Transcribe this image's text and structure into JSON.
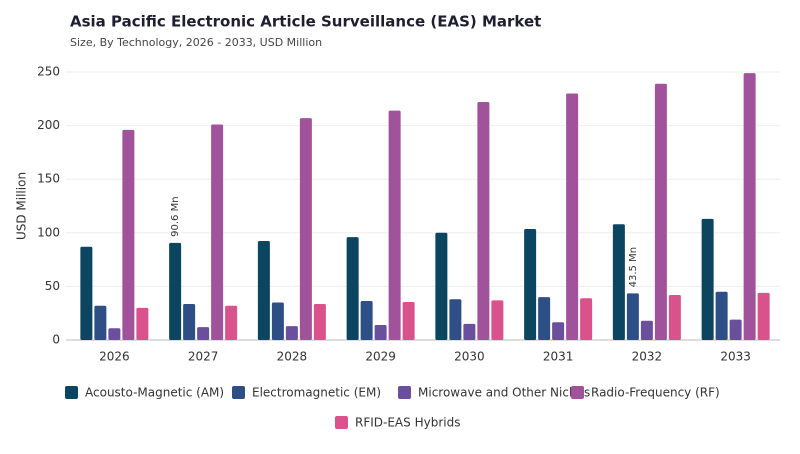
{
  "chart_data": {
    "type": "bar",
    "title": "Asia Pacific Electronic Article Surveillance (EAS) Market",
    "subtitle": "Size, By Technology, 2026 - 2033, USD Million",
    "y_label": "USD Million",
    "categories": [
      "2026",
      "2027",
      "2028",
      "2029",
      "2030",
      "2031",
      "2032",
      "2033"
    ],
    "series": [
      {
        "name": "Acousto-Magnetic (AM)",
        "color": "#0b4560",
        "values": [
          87,
          90.6,
          92.4,
          96,
          100,
          103.5,
          108,
          113
        ],
        "value_labels": [
          null,
          "90.6 Mn",
          null,
          null,
          null,
          null,
          null,
          null
        ]
      },
      {
        "name": "Electromagnetic (EM)",
        "color": "#2e4f86",
        "values": [
          32,
          33.6,
          35,
          36.4,
          38,
          40,
          43.5,
          45
        ],
        "value_labels": [
          null,
          null,
          null,
          null,
          null,
          null,
          "43.5 Mn",
          null
        ]
      },
      {
        "name": "Microwave and Other Niches",
        "color": "#6a4f9c",
        "values": [
          11,
          12,
          13,
          14,
          15,
          16.5,
          18,
          19
        ]
      },
      {
        "name": "Radio-Frequency (RF)",
        "color": "#a0529a",
        "values": [
          196,
          201,
          207,
          214,
          222,
          230,
          239,
          249
        ]
      },
      {
        "name": "RFID-EAS Hybrids",
        "color": "#d9528b",
        "values": [
          30,
          32,
          33.6,
          35.5,
          37,
          39,
          42,
          44
        ]
      }
    ],
    "ylim": [
      0,
      250
    ],
    "yticks": [
      0,
      50,
      100,
      150,
      200,
      250
    ],
    "grid": true
  }
}
